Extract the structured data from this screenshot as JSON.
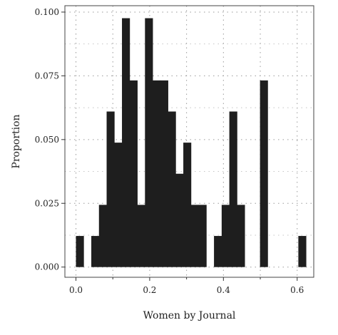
{
  "chart_data": {
    "type": "bar",
    "xlabel": "Women by Journal",
    "ylabel": "Proportion",
    "grid": true,
    "xlim": [
      -0.03,
      0.645
    ],
    "ylim": [
      -0.004,
      0.1025
    ],
    "xticks": [
      0.0,
      0.1,
      0.2,
      0.3,
      0.4,
      0.5,
      0.6
    ],
    "xtick_labels": [
      "0.0",
      "0.2",
      "0.4",
      "0.6"
    ],
    "yticks": [
      0.0,
      0.025,
      0.05,
      0.075,
      0.1
    ],
    "ytick_labels": [
      "0.000",
      "0.025",
      "0.050",
      "0.075",
      "0.100"
    ],
    "bin_width": 0.0208,
    "bins": [
      {
        "x": 0.0,
        "value": 0.0122
      },
      {
        "x": 0.0208,
        "value": 0.0
      },
      {
        "x": 0.0416,
        "value": 0.0122
      },
      {
        "x": 0.0624,
        "value": 0.0244
      },
      {
        "x": 0.0832,
        "value": 0.061
      },
      {
        "x": 0.104,
        "value": 0.0488
      },
      {
        "x": 0.1248,
        "value": 0.0976
      },
      {
        "x": 0.1456,
        "value": 0.0732
      },
      {
        "x": 0.1664,
        "value": 0.0244
      },
      {
        "x": 0.1872,
        "value": 0.0976
      },
      {
        "x": 0.208,
        "value": 0.0732
      },
      {
        "x": 0.2288,
        "value": 0.0732
      },
      {
        "x": 0.2496,
        "value": 0.061
      },
      {
        "x": 0.2704,
        "value": 0.0366
      },
      {
        "x": 0.2912,
        "value": 0.0488
      },
      {
        "x": 0.312,
        "value": 0.0244
      },
      {
        "x": 0.3328,
        "value": 0.0244
      },
      {
        "x": 0.3536,
        "value": 0.0
      },
      {
        "x": 0.3744,
        "value": 0.0122
      },
      {
        "x": 0.3952,
        "value": 0.0244
      },
      {
        "x": 0.416,
        "value": 0.061
      },
      {
        "x": 0.4368,
        "value": 0.0244
      },
      {
        "x": 0.4576,
        "value": 0.0
      },
      {
        "x": 0.4784,
        "value": 0.0
      },
      {
        "x": 0.4992,
        "value": 0.0732
      },
      {
        "x": 0.52,
        "value": 0.0
      },
      {
        "x": 0.5408,
        "value": 0.0
      },
      {
        "x": 0.5616,
        "value": 0.0
      },
      {
        "x": 0.5824,
        "value": 0.0
      },
      {
        "x": 0.6032,
        "value": 0.0122
      }
    ],
    "bar_color": "#1e1e1e",
    "grid_color": "#9a9a9a",
    "frame_color": "#444444"
  }
}
